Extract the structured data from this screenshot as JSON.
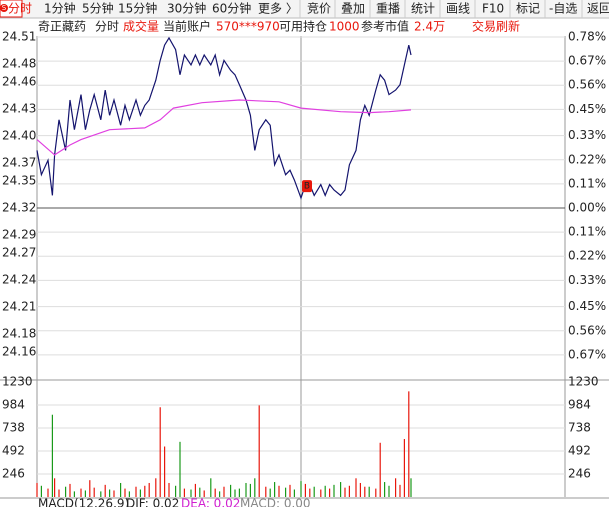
{
  "badge": "S",
  "toolbar": {
    "tabs": [
      "分时",
      "1分钟",
      "5分钟",
      "15分钟",
      "30分钟",
      "60分钟",
      "更多 〉"
    ],
    "tools": [
      "竞价",
      "叠加",
      "重播",
      "统计",
      "画线",
      "F10",
      "标记",
      "-自选",
      "返回"
    ]
  },
  "info_bar": {
    "stock": "奇正藏药",
    "mode": "分时",
    "indicator": "成交量",
    "account_label": "当前账户",
    "account": "570***970",
    "position_label": "可用持仓",
    "position": "1000",
    "value_label": "参考市值",
    "value": "2.4万",
    "refresh": "交易刷新"
  },
  "marker": "B",
  "chart_data": [
    {
      "type": "line",
      "xlim": [
        0,
        240
      ],
      "ylim": [
        24.13,
        24.51
      ],
      "yticks": [
        24.51,
        24.48,
        24.46,
        24.43,
        {
          "value": 24.4,
          "label": "24.40"
        },
        24.37,
        24.35,
        24.32,
        24.29,
        24.27,
        24.24,
        24.21,
        24.18,
        24.16
      ],
      "y2lim": [
        -0.78,
        0.78
      ],
      "y2ticks": [
        {
          "value": 0.78,
          "label": "0.78%"
        },
        {
          "value": 0.67,
          "label": "0.67%"
        },
        {
          "value": 0.56,
          "label": "0.56%"
        },
        {
          "value": 0.45,
          "label": "0.45%"
        },
        {
          "value": 0.33,
          "label": "0.33%"
        },
        {
          "value": 0.22,
          "label": "0.22%"
        },
        {
          "value": 0.11,
          "label": "0.11%"
        },
        {
          "value": 0,
          "label": "0.00%"
        },
        {
          "value": -0.11,
          "label": "0.11%"
        },
        {
          "value": -0.22,
          "label": "0.22%"
        },
        {
          "value": -0.33,
          "label": "0.33%"
        },
        {
          "value": -0.45,
          "label": "0.45%"
        },
        {
          "value": -0.56,
          "label": "0.56%"
        },
        {
          "value": -0.67,
          "label": "0.67%"
        }
      ],
      "up_color": "#e8170c",
      "down_color": "#1a9a1a",
      "grid": true,
      "series": [
        {
          "color": "#14146e",
          "x": [
            0,
            2,
            5,
            7,
            8,
            10,
            13,
            15,
            17,
            20,
            22,
            24,
            26,
            29,
            31,
            33,
            35,
            38,
            40,
            42,
            45,
            47,
            49,
            51,
            54,
            56,
            58,
            60,
            63,
            65,
            67,
            70,
            72,
            74,
            76,
            79,
            81,
            83,
            85,
            88,
            90,
            92,
            95,
            97,
            99,
            101,
            104,
            106,
            108,
            110,
            113,
            115,
            117,
            120,
            122,
            124,
            126,
            129,
            131,
            133,
            135,
            138,
            140,
            142,
            145,
            147,
            149,
            151,
            154,
            156,
            158,
            160,
            163,
            165,
            167,
            169,
            170
          ],
          "values": [
            24.384,
            24.357,
            24.373,
            24.334,
            24.379,
            24.418,
            24.384,
            24.44,
            24.407,
            24.446,
            24.407,
            24.429,
            24.446,
            24.418,
            24.451,
            24.423,
            24.44,
            24.412,
            24.434,
            24.418,
            24.44,
            24.423,
            24.434,
            24.44,
            24.462,
            24.484,
            24.501,
            24.509,
            24.496,
            24.468,
            24.49,
            24.479,
            24.49,
            24.479,
            24.49,
            24.479,
            24.49,
            24.468,
            24.484,
            24.473,
            24.468,
            24.457,
            24.44,
            24.423,
            24.384,
            24.407,
            24.418,
            24.412,
            24.368,
            24.379,
            24.357,
            24.362,
            24.351,
            24.331,
            24.346,
            24.346,
            24.334,
            24.346,
            24.334,
            24.346,
            24.34,
            24.334,
            24.34,
            24.368,
            24.384,
            24.418,
            24.434,
            24.423,
            24.451,
            24.468,
            24.462,
            24.446,
            24.451,
            24.457,
            24.479,
            24.501,
            24.49
          ]
        },
        {
          "color": "#e040e0",
          "x": [
            0,
            8,
            15,
            20,
            33,
            49,
            56,
            62,
            75,
            92,
            110,
            120,
            138,
            151,
            160,
            170
          ],
          "values": [
            24.396,
            24.379,
            24.39,
            24.396,
            24.407,
            24.409,
            24.418,
            24.431,
            24.437,
            24.44,
            24.438,
            24.431,
            24.427,
            24.426,
            24.427,
            24.429
          ]
        }
      ]
    },
    {
      "type": "bar",
      "xlim": [
        0,
        240
      ],
      "ylim": [
        0,
        1230
      ],
      "yticks": [
        1230,
        984,
        738,
        492,
        246
      ],
      "color": "#e8170c",
      "x": [
        0,
        2,
        5,
        7,
        8,
        10,
        13,
        15,
        17,
        20,
        22,
        24,
        26,
        29,
        31,
        33,
        35,
        38,
        40,
        42,
        45,
        47,
        49,
        51,
        54,
        56,
        58,
        60,
        63,
        65,
        67,
        70,
        72,
        74,
        76,
        79,
        81,
        83,
        85,
        88,
        90,
        92,
        95,
        97,
        99,
        101,
        104,
        106,
        108,
        110,
        113,
        115,
        117,
        120,
        122,
        124,
        126,
        129,
        131,
        133,
        135,
        138,
        140,
        142,
        145,
        147,
        149,
        151,
        154,
        156,
        158,
        160,
        163,
        165,
        167,
        169,
        170
      ],
      "values": [
        150,
        120,
        90,
        880,
        200,
        80,
        110,
        140,
        60,
        90,
        70,
        180,
        100,
        60,
        130,
        80,
        70,
        150,
        90,
        60,
        110,
        80,
        120,
        150,
        200,
        960,
        540,
        150,
        120,
        590,
        90,
        80,
        140,
        100,
        70,
        200,
        90,
        60,
        110,
        130,
        80,
        90,
        150,
        140,
        200,
        980,
        110,
        90,
        160,
        120,
        100,
        130,
        80,
        170,
        140,
        90,
        110,
        80,
        120,
        90,
        130,
        160,
        100,
        120,
        200,
        150,
        110,
        110,
        90,
        580,
        160,
        120,
        200,
        130,
        620,
        1130,
        200
      ]
    }
  ],
  "macd": {
    "label": "MACD(12,26,9)",
    "dif": "DIF: 0.02",
    "dea": "DEA: 0.02",
    "macd": "MACD: 0.00"
  }
}
